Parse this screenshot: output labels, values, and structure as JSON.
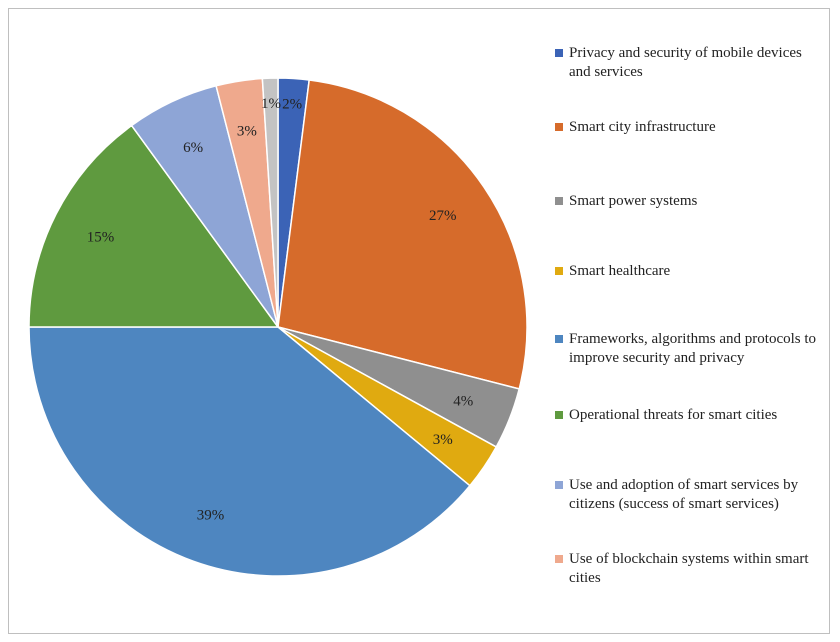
{
  "chart_data": {
    "type": "pie",
    "title": "",
    "legend_position": "right",
    "slices": [
      {
        "label": "Privacy and security of mobile devices and services",
        "value": 2,
        "value_label": "2%",
        "color": "#3b63b6"
      },
      {
        "label": "Smart city infrastructure",
        "value": 27,
        "value_label": "27%",
        "color": "#d66b2b"
      },
      {
        "label": "Smart power systems",
        "value": 4,
        "value_label": "4%",
        "color": "#8f8f8f"
      },
      {
        "label": "Smart healthcare",
        "value": 3,
        "value_label": "3%",
        "color": "#e0aa10"
      },
      {
        "label": "Frameworks, algorithms and protocols to improve security and privacy",
        "value": 39,
        "value_label": "39%",
        "color": "#4e86c0"
      },
      {
        "label": "Operational threats for smart cities",
        "value": 15,
        "value_label": "15%",
        "color": "#5f9a3f"
      },
      {
        "label": "Use and adoption of smart services by citizens (success of smart services)",
        "value": 6,
        "value_label": "6%",
        "color": "#8ea5d6"
      },
      {
        "label": "Use of blockchain systems within smart cities",
        "value": 3,
        "value_label": "3%",
        "color": "#efa98d"
      },
      {
        "label": "",
        "value": 1,
        "value_label": "1%",
        "color": "#c3c3c3"
      }
    ]
  }
}
